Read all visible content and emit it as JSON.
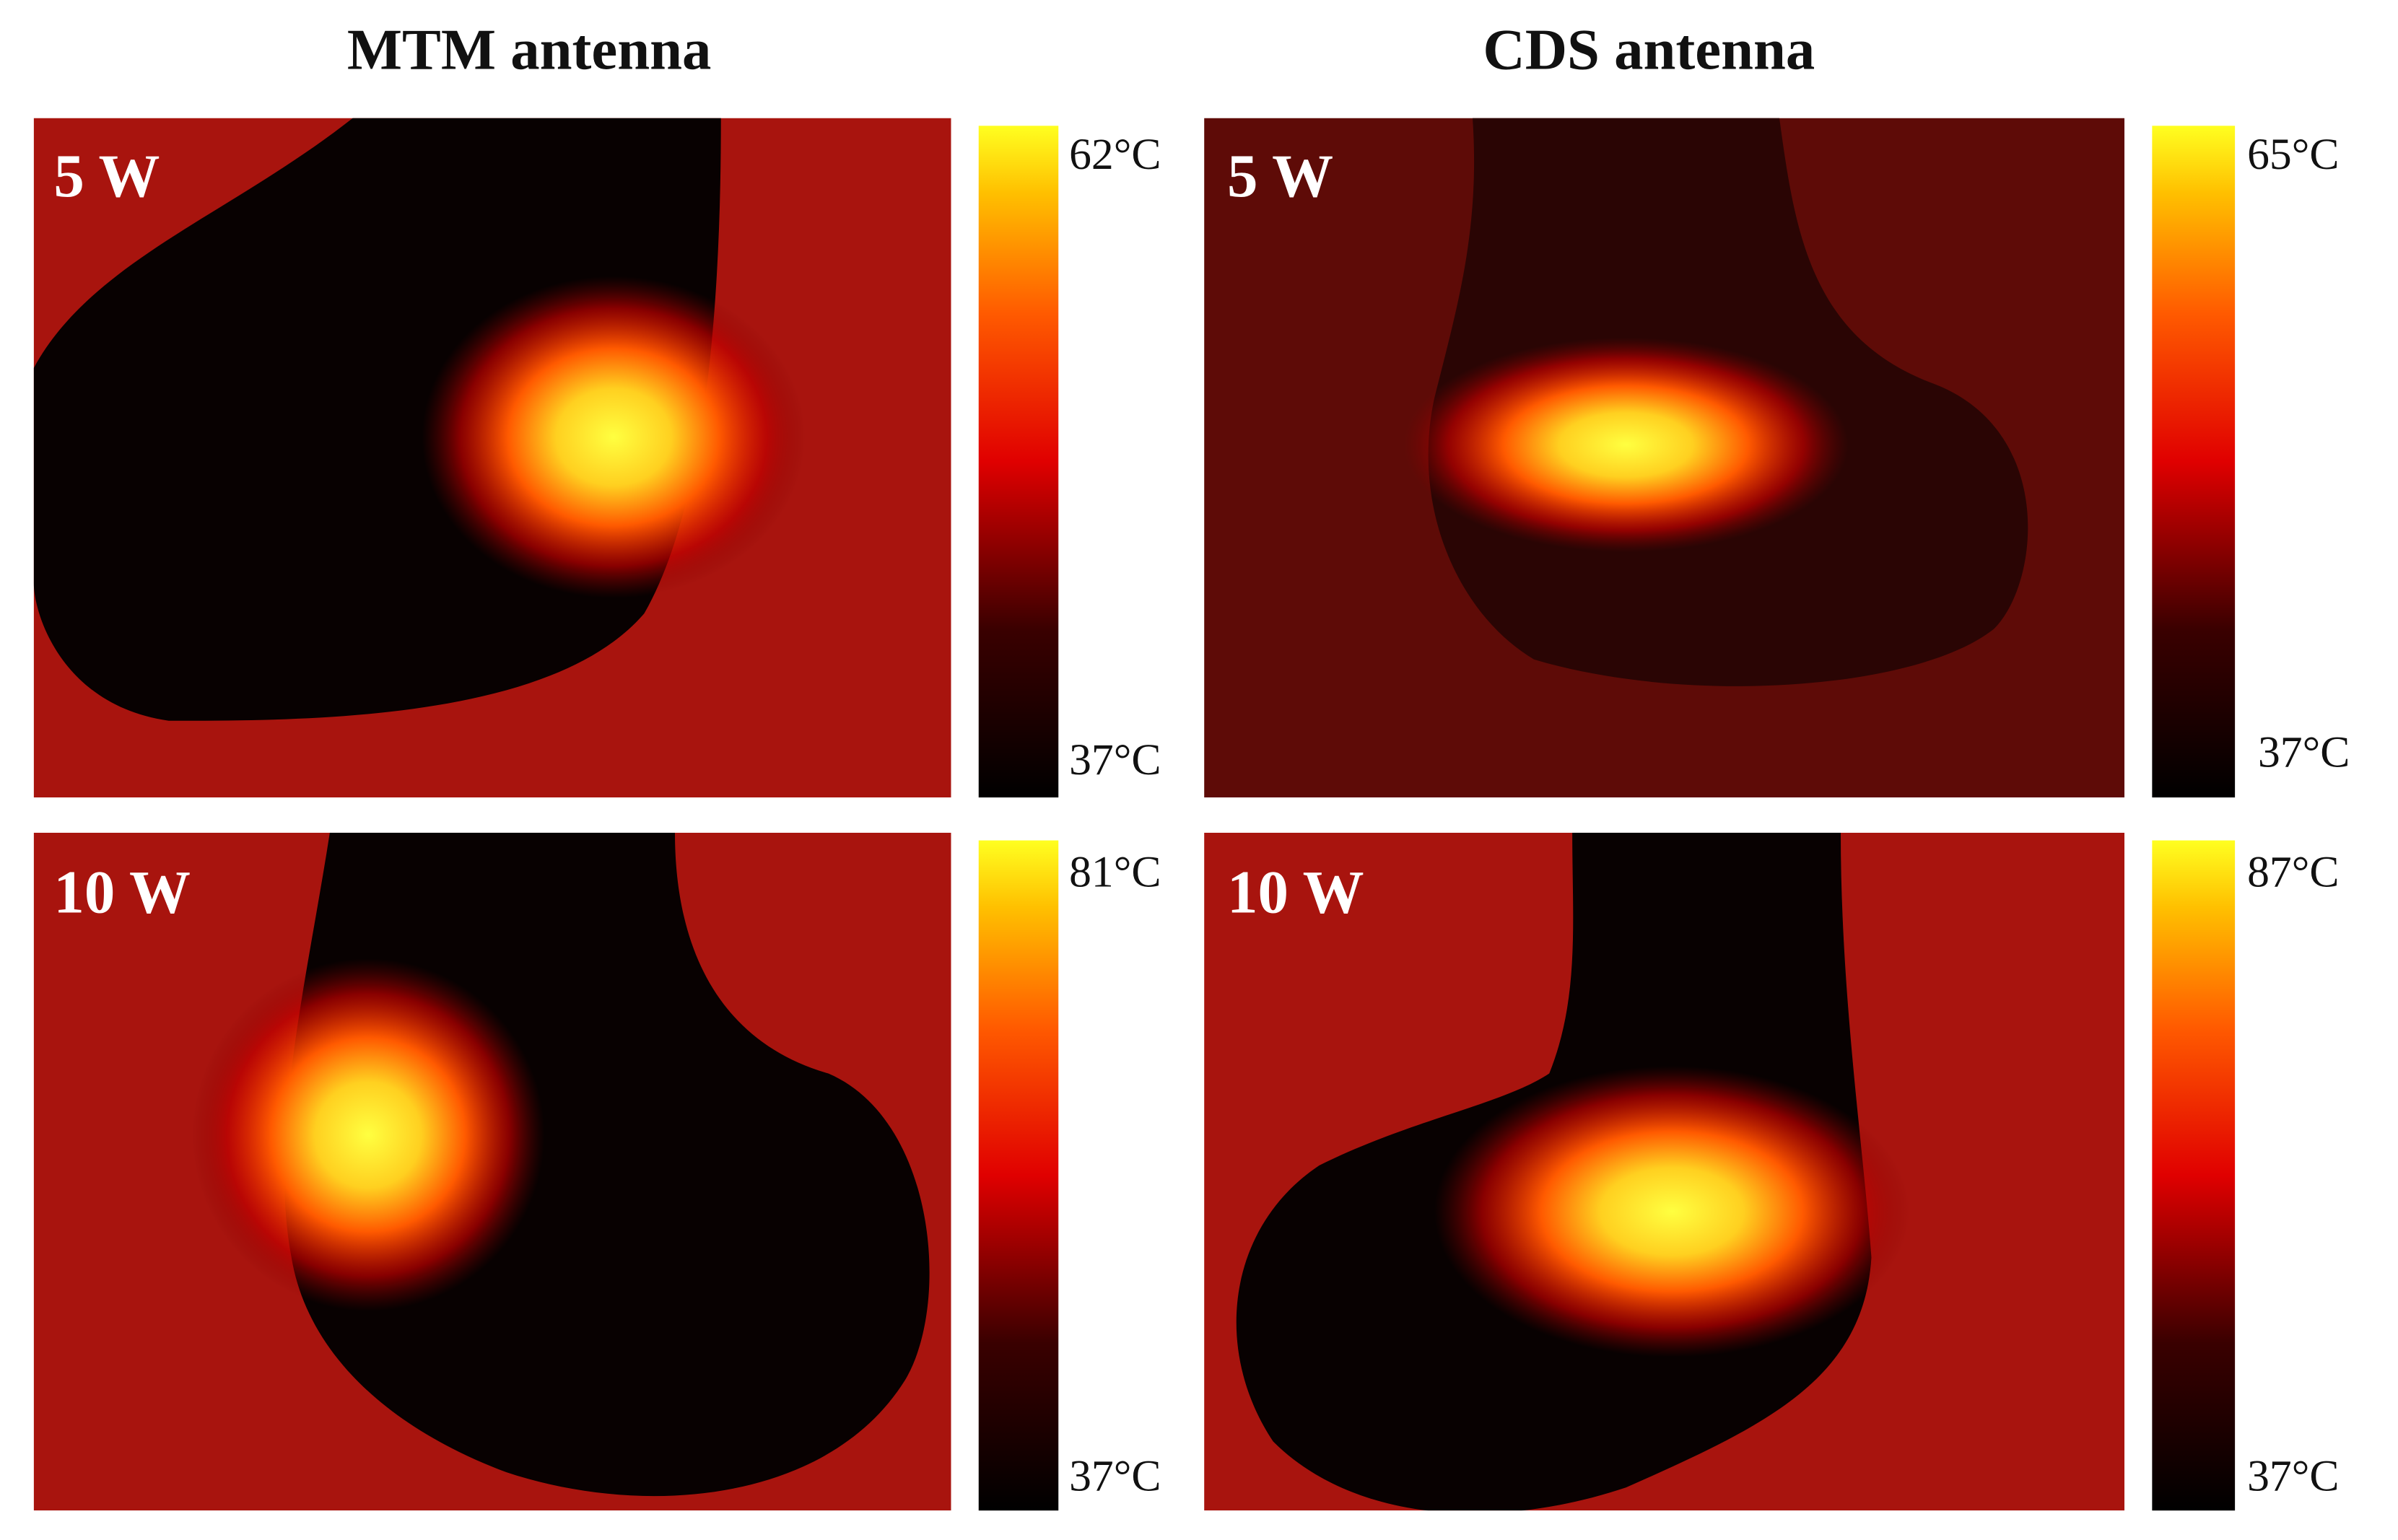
{
  "columns": [
    {
      "title": "MTM antenna",
      "panels": [
        {
          "power": "5 W",
          "max_label": "62°C",
          "min_label": "37°C"
        },
        {
          "power": "10 W",
          "max_label": "81°C",
          "min_label": "37°C"
        }
      ]
    },
    {
      "title": "CDS antenna",
      "panels": [
        {
          "power": "5 W",
          "max_label": "65°C",
          "min_label": "37°C"
        },
        {
          "power": "10 W",
          "max_label": "87°C",
          "min_label": "37°C"
        }
      ]
    }
  ]
}
